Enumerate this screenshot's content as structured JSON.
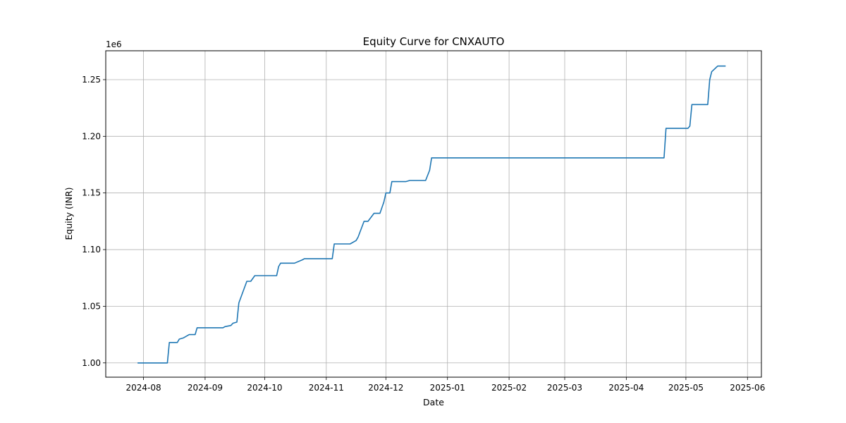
{
  "chart_data": {
    "type": "line",
    "title": "Equity Curve for CNXAUTO",
    "xlabel": "Date",
    "ylabel": "Equity (INR)",
    "y_offset_label": "1e6",
    "y_scale": 1000000,
    "grid": true,
    "legend": "none",
    "line_color": "#1f77b4",
    "xlim": [
      "2024-07-13",
      "2025-06-08"
    ],
    "ylim": [
      0.9874,
      1.2755
    ],
    "x_ticks": [
      {
        "date": "2024-08-01",
        "label": "2024-08"
      },
      {
        "date": "2024-09-01",
        "label": "2024-09"
      },
      {
        "date": "2024-10-01",
        "label": "2024-10"
      },
      {
        "date": "2024-11-01",
        "label": "2024-11"
      },
      {
        "date": "2024-12-01",
        "label": "2024-12"
      },
      {
        "date": "2025-01-01",
        "label": "2025-01"
      },
      {
        "date": "2025-02-01",
        "label": "2025-02"
      },
      {
        "date": "2025-03-01",
        "label": "2025-03"
      },
      {
        "date": "2025-04-01",
        "label": "2025-04"
      },
      {
        "date": "2025-05-01",
        "label": "2025-05"
      },
      {
        "date": "2025-06-01",
        "label": "2025-06"
      }
    ],
    "y_ticks": [
      {
        "value": 1.0,
        "label": "1.00"
      },
      {
        "value": 1.05,
        "label": "1.05"
      },
      {
        "value": 1.1,
        "label": "1.10"
      },
      {
        "value": 1.15,
        "label": "1.15"
      },
      {
        "value": 1.2,
        "label": "1.20"
      },
      {
        "value": 1.25,
        "label": "1.25"
      }
    ],
    "series": [
      {
        "x": [
          "2024-07-29",
          "2024-08-13",
          "2024-08-14",
          "2024-08-18",
          "2024-08-19",
          "2024-08-21",
          "2024-08-24",
          "2024-08-27",
          "2024-08-28",
          "2024-09-10",
          "2024-09-11",
          "2024-09-14",
          "2024-09-15",
          "2024-09-17",
          "2024-09-18",
          "2024-09-22",
          "2024-09-24",
          "2024-09-26",
          "2024-10-07",
          "2024-10-08",
          "2024-10-09",
          "2024-10-16",
          "2024-10-20",
          "2024-10-21",
          "2024-11-04",
          "2024-11-05",
          "2024-11-13",
          "2024-11-16",
          "2024-11-17",
          "2024-11-20",
          "2024-11-22",
          "2024-11-25",
          "2024-11-28",
          "2024-11-30",
          "2024-12-01",
          "2024-12-03",
          "2024-12-04",
          "2024-12-11",
          "2024-12-13",
          "2024-12-21",
          "2024-12-23",
          "2024-12-24",
          "2025-04-20",
          "2025-04-21",
          "2025-05-02",
          "2025-05-03",
          "2025-05-04",
          "2025-05-12",
          "2025-05-13",
          "2025-05-14",
          "2025-05-17",
          "2025-05-21"
        ],
        "y": [
          1.0,
          1.0,
          1.018,
          1.018,
          1.021,
          1.022,
          1.025,
          1.025,
          1.031,
          1.031,
          1.032,
          1.033,
          1.035,
          1.036,
          1.053,
          1.072,
          1.072,
          1.077,
          1.077,
          1.085,
          1.088,
          1.088,
          1.091,
          1.092,
          1.092,
          1.105,
          1.105,
          1.108,
          1.111,
          1.125,
          1.125,
          1.132,
          1.132,
          1.142,
          1.15,
          1.15,
          1.16,
          1.16,
          1.161,
          1.161,
          1.17,
          1.181,
          1.181,
          1.207,
          1.207,
          1.209,
          1.228,
          1.228,
          1.25,
          1.257,
          1.262,
          1.262
        ]
      }
    ]
  }
}
